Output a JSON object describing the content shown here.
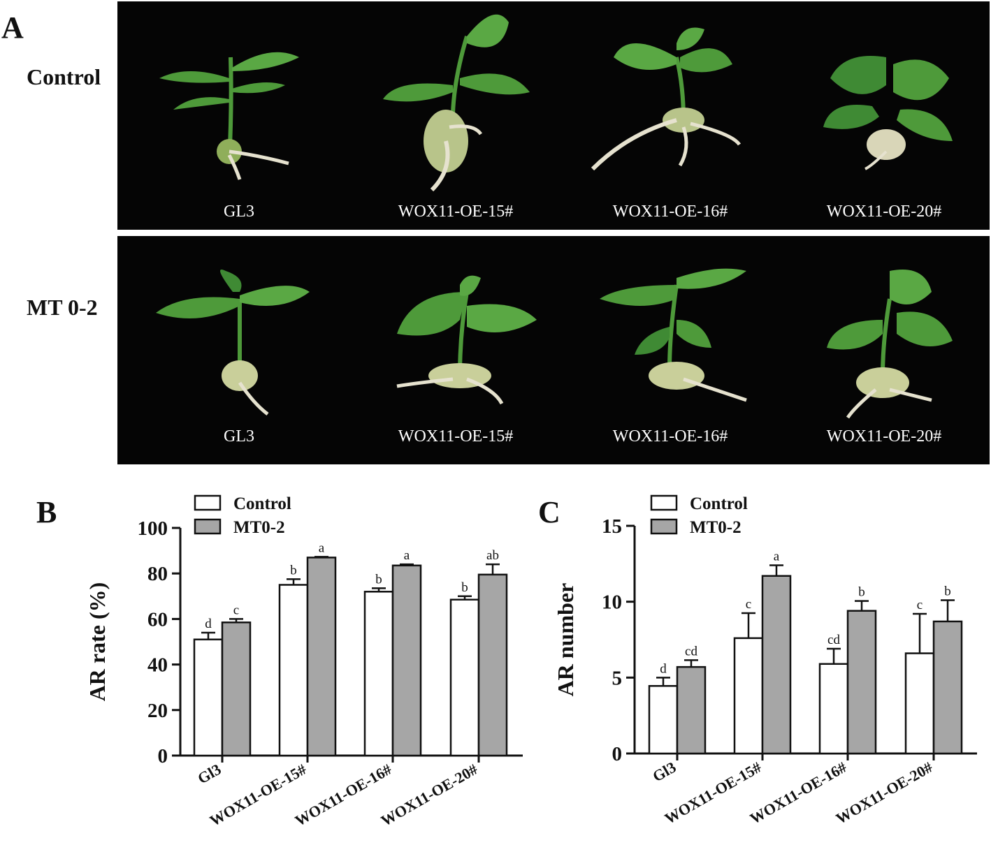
{
  "panel_a": {
    "letter": "A",
    "rows": [
      {
        "label": "Control",
        "plants": [
          "GL3",
          "WOX11-OE-15#",
          "WOX11-OE-16#",
          "WOX11-OE-20#"
        ]
      },
      {
        "label": "MT 0-2",
        "plants": [
          "GL3",
          "WOX11-OE-15#",
          "WOX11-OE-16#",
          "WOX11-OE-20#"
        ]
      }
    ]
  },
  "colors": {
    "control": "#ffffff",
    "mt": "#a6a6a6",
    "photo_bg": "#050505",
    "leaf": "#4e9a3a",
    "root": "#e6e2cf"
  },
  "chart_data": [
    {
      "panel": "B",
      "type": "bar",
      "ylabel": "AR rate (%)",
      "xlabel": "",
      "ylim": [
        0,
        100
      ],
      "yticks": [
        0,
        20,
        40,
        60,
        80,
        100
      ],
      "categories": [
        "Gl3",
        "WOX11-OE-15#",
        "WOX11-OE-16#",
        "WOX11-OE-20#"
      ],
      "legend_position": "top-left",
      "series": [
        {
          "name": "Control",
          "values": [
            51,
            75,
            72,
            68.5
          ],
          "errors": [
            3,
            2.5,
            1.5,
            1.5
          ],
          "labels": [
            "d",
            "b",
            "b",
            "b"
          ]
        },
        {
          "name": "MT0-2",
          "values": [
            58.5,
            87,
            83.5,
            79.5
          ],
          "errors": [
            1.5,
            0.3,
            0.5,
            4.5
          ],
          "labels": [
            "c",
            "a",
            "a",
            "ab"
          ]
        }
      ]
    },
    {
      "panel": "C",
      "type": "bar",
      "ylabel": "AR number",
      "xlabel": "",
      "ylim": [
        0,
        15
      ],
      "yticks": [
        0,
        5,
        10,
        15
      ],
      "categories": [
        "Gl3",
        "WOX11-OE-15#",
        "WOX11-OE-16#",
        "WOX11-OE-20#"
      ],
      "legend_position": "top-left",
      "series": [
        {
          "name": "Control",
          "values": [
            4.45,
            7.6,
            5.9,
            6.6
          ],
          "errors": [
            0.55,
            1.65,
            1.0,
            2.6
          ],
          "labels": [
            "d",
            "c",
            "cd",
            "c"
          ]
        },
        {
          "name": "MT0-2",
          "values": [
            5.7,
            11.7,
            9.4,
            8.7
          ],
          "errors": [
            0.45,
            0.7,
            0.65,
            1.4
          ],
          "labels": [
            "cd",
            "a",
            "b",
            "b"
          ]
        }
      ]
    }
  ]
}
